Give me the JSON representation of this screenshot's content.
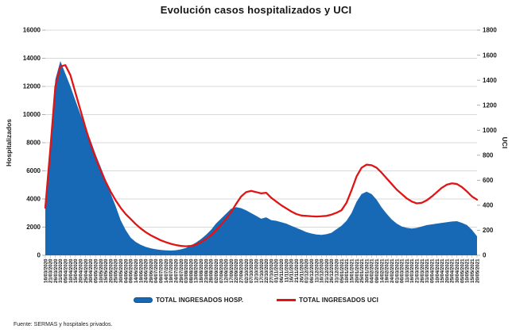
{
  "title": "Evolución casos hospitalizados y UCI",
  "footer": "Fuente: SERMAS y hospitales privados.",
  "chart_data": {
    "type": "combo-area-line",
    "grid": true,
    "grid_color": "#d9d9d9",
    "legend_position": "bottom",
    "left_axis": {
      "label": "Hospitalizados",
      "min": 0,
      "max": 16000,
      "step": 2000
    },
    "right_axis": {
      "label": "UCI",
      "min": 0,
      "max": 1800,
      "step": 200
    },
    "categories": [
      "16/03/2020",
      "21/03/2020",
      "26/03/2020",
      "31/03/2020",
      "05/04/2020",
      "10/04/2020",
      "15/04/2020",
      "20/04/2020",
      "25/04/2020",
      "30/04/2020",
      "05/05/2020",
      "10/05/2020",
      "15/05/2020",
      "20/05/2020",
      "25/05/2020",
      "30/05/2020",
      "04/06/2020",
      "09/06/2020",
      "14/06/2020",
      "19/06/2020",
      "24/06/2020",
      "29/06/2020",
      "04/07/2020",
      "09/07/2020",
      "14/07/2020",
      "19/07/2020",
      "24/07/2020",
      "29/07/2020",
      "03/08/2020",
      "08/08/2020",
      "13/08/2020",
      "18/08/2020",
      "23/08/2020",
      "28/08/2020",
      "02/09/2020",
      "07/09/2020",
      "12/09/2020",
      "17/09/2020",
      "22/09/2020",
      "27/09/2020",
      "02/10/2020",
      "07/10/2020",
      "12/10/2020",
      "17/10/2020",
      "22/10/2020",
      "27/10/2020",
      "01/11/2020",
      "06/11/2020",
      "11/11/2020",
      "16/11/2020",
      "21/11/2020",
      "26/11/2020",
      "01/12/2020",
      "06/12/2020",
      "11/12/2020",
      "16/12/2020",
      "21/12/2020",
      "26/12/2020",
      "31/12/2020",
      "05/01/2021",
      "10/01/2021",
      "15/01/2021",
      "20/01/2021",
      "25/01/2021",
      "30/01/2021",
      "04/02/2021",
      "09/02/2021",
      "14/02/2021",
      "19/02/2021",
      "24/02/2021",
      "01/03/2021",
      "06/03/2021",
      "11/03/2021",
      "16/03/2021",
      "21/03/2021",
      "26/03/2021",
      "31/03/2021",
      "05/04/2021",
      "10/04/2021",
      "15/04/2021",
      "20/04/2021",
      "25/04/2021",
      "30/04/2021",
      "05/05/2021",
      "10/05/2021",
      "15/05/2021",
      "20/05/2021"
    ],
    "series": [
      {
        "name": "TOTAL INGRESADOS HOSP.",
        "type": "area",
        "axis": "left",
        "color": "#1769b5",
        "values": [
          3600,
          7800,
          12500,
          13800,
          12900,
          12000,
          11000,
          10000,
          9100,
          8200,
          7200,
          6300,
          5400,
          4400,
          3500,
          2500,
          1800,
          1250,
          950,
          750,
          600,
          500,
          430,
          380,
          350,
          340,
          360,
          420,
          520,
          700,
          900,
          1150,
          1450,
          1800,
          2250,
          2600,
          2950,
          3300,
          3420,
          3350,
          3200,
          3000,
          2800,
          2600,
          2700,
          2500,
          2450,
          2350,
          2250,
          2100,
          1950,
          1800,
          1650,
          1550,
          1480,
          1450,
          1500,
          1600,
          1850,
          2100,
          2450,
          3000,
          3800,
          4350,
          4520,
          4350,
          3950,
          3400,
          2950,
          2550,
          2250,
          2050,
          1950,
          1900,
          1950,
          2050,
          2150,
          2200,
          2250,
          2300,
          2350,
          2400,
          2420,
          2300,
          2150,
          1800,
          1350
        ]
      },
      {
        "name": "TOTAL INGRESADOS UCI",
        "type": "line",
        "axis": "right",
        "color": "#e01414",
        "values": [
          380,
          850,
          1350,
          1510,
          1520,
          1440,
          1300,
          1160,
          1020,
          890,
          780,
          680,
          590,
          510,
          440,
          380,
          330,
          290,
          250,
          215,
          185,
          160,
          140,
          120,
          105,
          92,
          82,
          75,
          72,
          75,
          85,
          105,
          130,
          160,
          200,
          245,
          290,
          345,
          410,
          470,
          505,
          515,
          505,
          495,
          500,
          460,
          430,
          400,
          375,
          350,
          330,
          318,
          315,
          312,
          310,
          312,
          315,
          325,
          340,
          360,
          420,
          520,
          630,
          700,
          725,
          720,
          700,
          660,
          615,
          570,
          525,
          490,
          455,
          430,
          415,
          420,
          440,
          470,
          505,
          540,
          565,
          575,
          570,
          545,
          510,
          470,
          445
        ]
      }
    ]
  }
}
